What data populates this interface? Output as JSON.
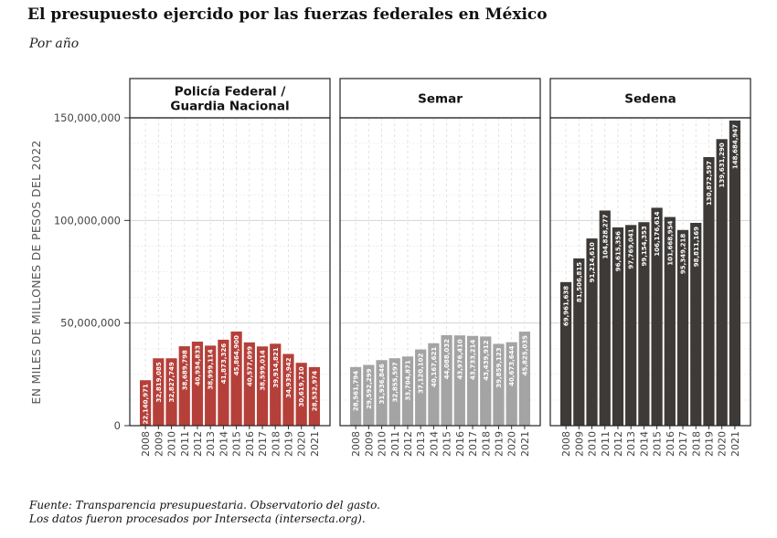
{
  "title": "El presupuesto ejercido por las fuerzas federales en México",
  "subtitle": "Por año",
  "caption": {
    "line1": "Fuente: Transparencia presupuestaria. Observatorio del gasto.",
    "line2": "Los datos fueron procesados por Intersecta (intersecta.org)."
  },
  "colors": {
    "policia": "#b5403a",
    "semar": "#a4a4a4",
    "sedena": "#3d3a38"
  },
  "chart_data": {
    "type": "bar",
    "ylabel": "EN MILES DE MILLONES DE PESOS DEL 2022",
    "ylim": [
      0,
      150000000
    ],
    "yticks": [
      0,
      50000000,
      100000000,
      150000000
    ],
    "ytick_labels": [
      "0",
      "50,000,000",
      "100,000,000",
      "150,000,000"
    ],
    "grid": true,
    "categories": [
      "2008",
      "2009",
      "2010",
      "2011",
      "2012",
      "2013",
      "2014",
      "2015",
      "2016",
      "2017",
      "2018",
      "2019",
      "2020",
      "2021"
    ],
    "panels": [
      {
        "name": "Policía Federal /\nGuardia Nacional",
        "color_key": "policia",
        "values": [
          22140971,
          32819085,
          32827749,
          38689798,
          40934833,
          38999114,
          41873326,
          45864900,
          40577099,
          38599014,
          39914821,
          34939942,
          30619710,
          28532974
        ],
        "labels": [
          "22,140,971",
          "32,819,085",
          "32,827,749",
          "38,689,798",
          "40,934,833",
          "38,999,114",
          "41,873,326",
          "45,864,900",
          "40,577,099",
          "38,599,014",
          "39,914,821",
          "34,939,942",
          "30,619,710",
          "28,532,974"
        ]
      },
      {
        "name": "Semar",
        "color_key": "semar",
        "values": [
          28561794,
          29592299,
          31936846,
          32855597,
          33704871,
          37120102,
          40167621,
          44088032,
          43976410,
          43733214,
          43439912,
          39859123,
          40673644,
          45825035
        ],
        "labels": [
          "28,561,794",
          "29,592,299",
          "31,936,846",
          "32,855,597",
          "33,704,871",
          "37,120,102",
          "40,167,621",
          "44,088,032",
          "43,976,410",
          "43,733,214",
          "43,439,912",
          "39,859,123",
          "40,673,644",
          "45,825,035"
        ]
      },
      {
        "name": "Sedena",
        "color_key": "sedena",
        "values": [
          69961638,
          81506815,
          91214610,
          104828277,
          96615356,
          97769041,
          99154353,
          106176614,
          101668954,
          95349218,
          98811169,
          130872597,
          139631290,
          148684947
        ],
        "labels": [
          "69,961,638",
          "81,506,815",
          "91,214,610",
          "104,828,277",
          "96,615,356",
          "97,769,041",
          "99,154,353",
          "106,176,614",
          "101,668,954",
          "95,349,218",
          "98,811,169",
          "130,872,597",
          "139,631,290",
          "148,684,947"
        ]
      }
    ]
  }
}
